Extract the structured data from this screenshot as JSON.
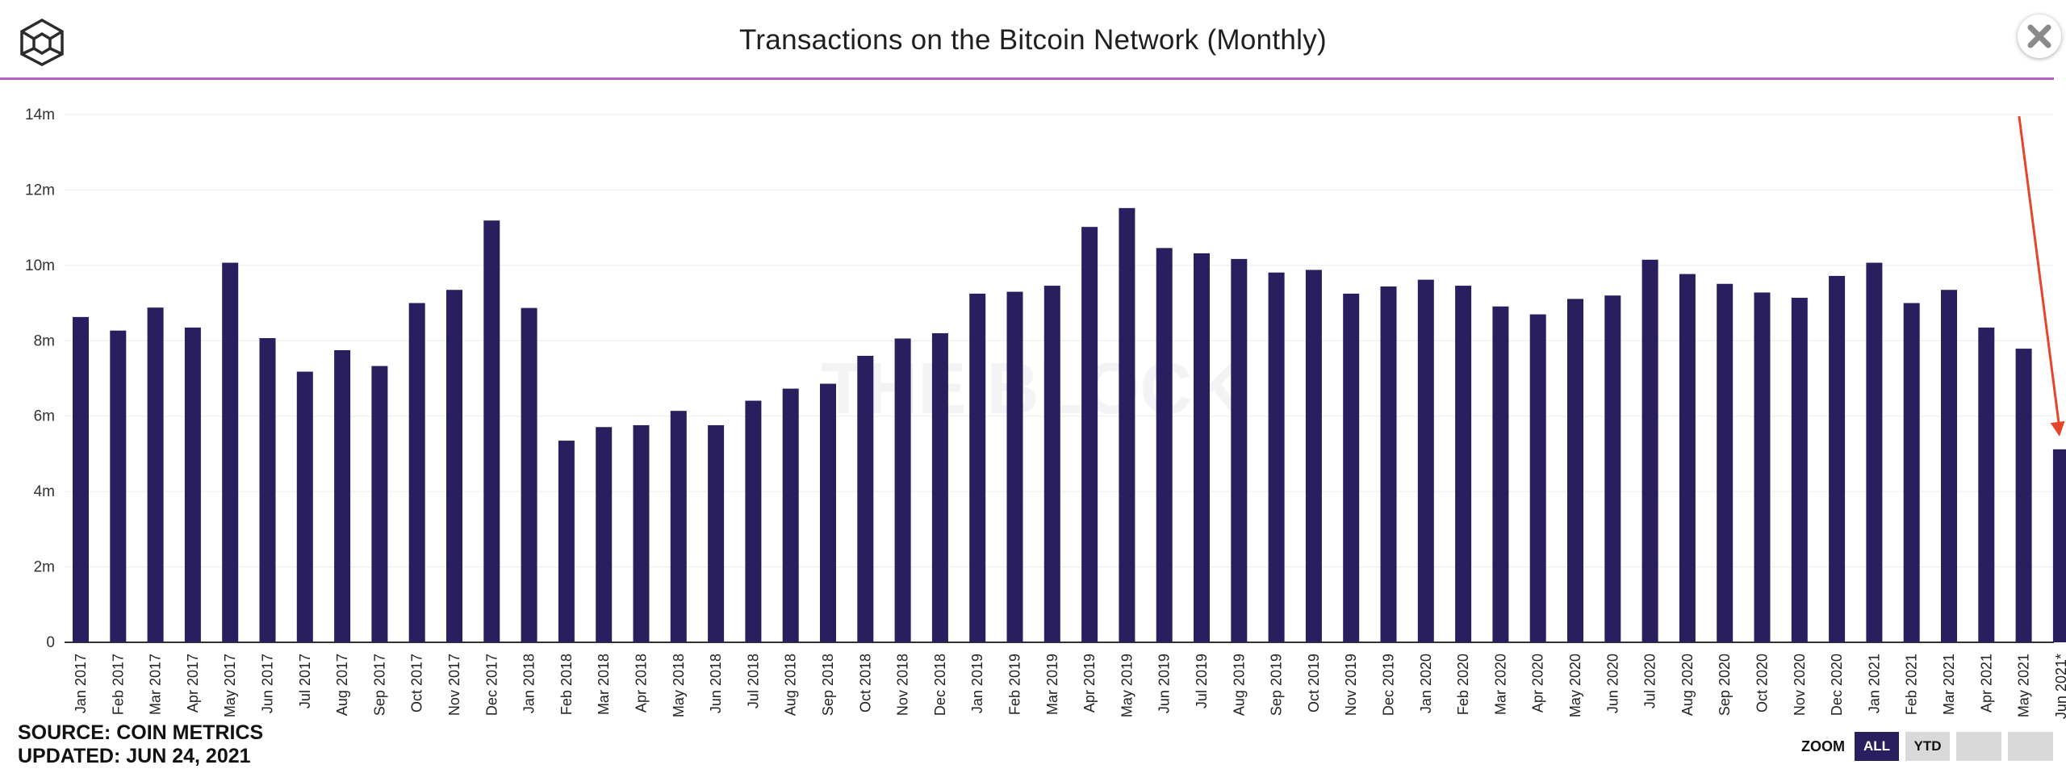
{
  "header": {
    "title": "Transactions on the Bitcoin Network (Monthly)",
    "logo_icon": "cube-logo-icon",
    "close_icon": "close-icon"
  },
  "footer": {
    "source": "SOURCE: COIN METRICS",
    "updated": "UPDATED: JUN 24, 2021"
  },
  "zoom": {
    "label": "ZOOM",
    "buttons": [
      "ALL",
      "YTD",
      "",
      ""
    ],
    "active": "ALL"
  },
  "colors": {
    "bar": "#2a1f5e",
    "accent_line": "#b45fc4",
    "arrow": "#e8432c",
    "grid": "#ececec"
  },
  "chart_data": {
    "type": "bar",
    "title": "Transactions on the Bitcoin Network (Monthly)",
    "xlabel": "",
    "ylabel": "",
    "ylim": [
      0,
      14000000
    ],
    "yticks": [
      "0",
      "2m",
      "4m",
      "6m",
      "8m",
      "10m",
      "12m",
      "14m"
    ],
    "grid": true,
    "legend": "none",
    "categories": [
      "Jan 2017",
      "Feb 2017",
      "Mar 2017",
      "Apr 2017",
      "May 2017",
      "Jun 2017",
      "Jul 2017",
      "Aug 2017",
      "Sep 2017",
      "Oct 2017",
      "Nov 2017",
      "Dec 2017",
      "Jan 2018",
      "Feb 2018",
      "Mar 2018",
      "Apr 2018",
      "May 2018",
      "Jun 2018",
      "Jul 2018",
      "Aug 2018",
      "Sep 2018",
      "Oct 2018",
      "Nov 2018",
      "Dec 2018",
      "Jan 2019",
      "Feb 2019",
      "Mar 2019",
      "Apr 2019",
      "May 2019",
      "Jun 2019",
      "Jul 2019",
      "Aug 2019",
      "Sep 2019",
      "Oct 2019",
      "Nov 2019",
      "Dec 2019",
      "Jan 2020",
      "Feb 2020",
      "Mar 2020",
      "Apr 2020",
      "May 2020",
      "Jun 2020",
      "Jul 2020",
      "Aug 2020",
      "Sep 2020",
      "Oct 2020",
      "Nov 2020",
      "Dec 2020",
      "Jan 2021",
      "Feb 2021",
      "Mar 2021",
      "Apr 2021",
      "May 2021",
      "Jun 2021*"
    ],
    "values": [
      8630000,
      8270000,
      8880000,
      8350000,
      10070000,
      8070000,
      7180000,
      7750000,
      7330000,
      9000000,
      9350000,
      11190000,
      8870000,
      5350000,
      5710000,
      5760000,
      6140000,
      5760000,
      6410000,
      6730000,
      6860000,
      7600000,
      8060000,
      8200000,
      9250000,
      9300000,
      9460000,
      11020000,
      11520000,
      10460000,
      10320000,
      10170000,
      9810000,
      9880000,
      9250000,
      9440000,
      9620000,
      9460000,
      8910000,
      8700000,
      9110000,
      9200000,
      10150000,
      9770000,
      9510000,
      9280000,
      9140000,
      9720000,
      10070000,
      9000000,
      9350000,
      8350000,
      7790000,
      5120000
    ],
    "annotation": {
      "type": "arrow",
      "target": "Jun 2021*"
    }
  }
}
